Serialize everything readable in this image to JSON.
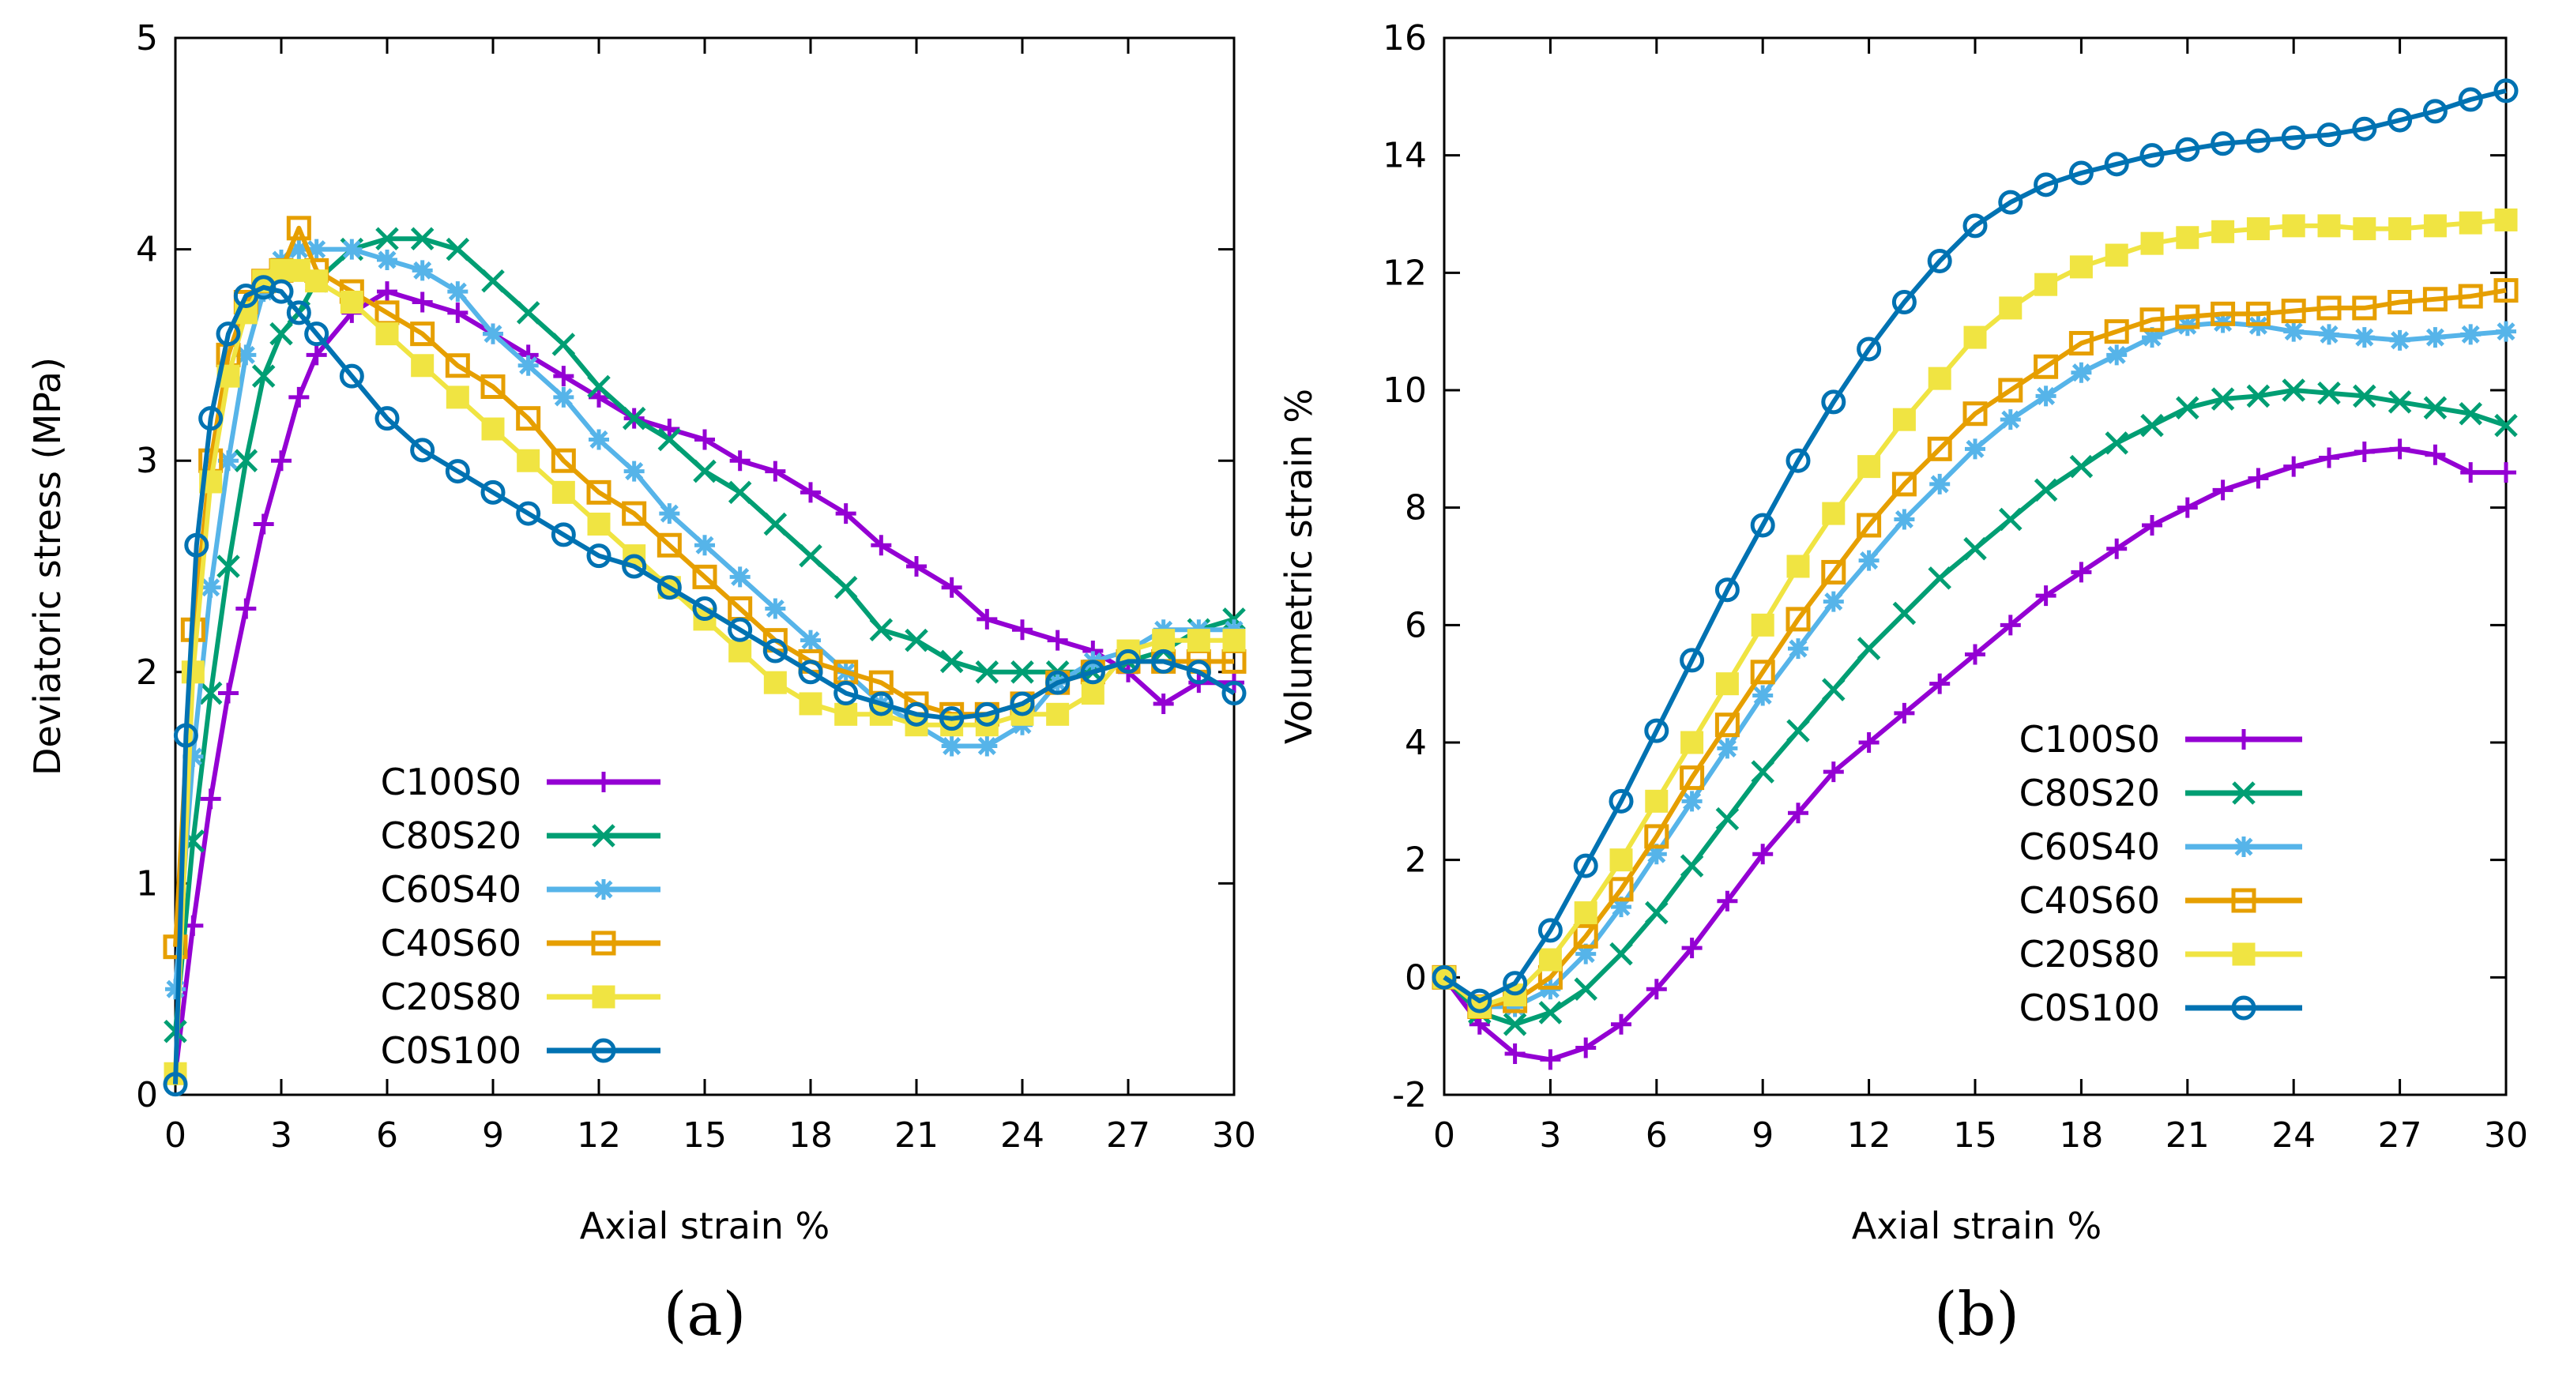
{
  "chart_data": [
    {
      "type": "line",
      "panel": "a",
      "caption": "(a)",
      "xlabel": "Axial strain %",
      "ylabel": "Deviatoric stress (MPa)",
      "xlim": [
        0,
        30
      ],
      "ylim": [
        0,
        5
      ],
      "xticks": [
        "0",
        "3",
        "6",
        "9",
        "12",
        "15",
        "18",
        "21",
        "24",
        "27",
        "30"
      ],
      "yticks": [
        "0",
        "1",
        "2",
        "3",
        "4",
        "5"
      ],
      "grid": false,
      "legend_position": "lower-left",
      "series": [
        {
          "name": "C100S0",
          "color": "#9400d3",
          "marker": "plus",
          "x": [
            0,
            0.5,
            1,
            1.5,
            2,
            2.5,
            3,
            3.5,
            4,
            5,
            6,
            7,
            8,
            9,
            10,
            11,
            12,
            13,
            14,
            15,
            16,
            17,
            18,
            19,
            20,
            21,
            22,
            23,
            24,
            25,
            26,
            27,
            28,
            29,
            30
          ],
          "y": [
            0.1,
            0.8,
            1.4,
            1.9,
            2.3,
            2.7,
            3.0,
            3.3,
            3.5,
            3.7,
            3.8,
            3.75,
            3.7,
            3.6,
            3.5,
            3.4,
            3.3,
            3.2,
            3.15,
            3.1,
            3.0,
            2.95,
            2.85,
            2.75,
            2.6,
            2.5,
            2.4,
            2.25,
            2.2,
            2.15,
            2.1,
            2.0,
            1.85,
            1.95,
            1.95
          ]
        },
        {
          "name": "C80S20",
          "color": "#009e73",
          "marker": "cross",
          "x": [
            0,
            0.5,
            1,
            1.5,
            2,
            2.5,
            3,
            3.5,
            4,
            5,
            6,
            7,
            8,
            9,
            10,
            11,
            12,
            13,
            14,
            15,
            16,
            17,
            18,
            19,
            20,
            21,
            22,
            23,
            24,
            25,
            26,
            27,
            28,
            29,
            30
          ],
          "y": [
            0.3,
            1.2,
            1.9,
            2.5,
            3.0,
            3.4,
            3.6,
            3.7,
            3.85,
            4.0,
            4.05,
            4.05,
            4.0,
            3.85,
            3.7,
            3.55,
            3.35,
            3.2,
            3.1,
            2.95,
            2.85,
            2.7,
            2.55,
            2.4,
            2.2,
            2.15,
            2.05,
            2.0,
            2.0,
            2.0,
            2.0,
            2.05,
            2.1,
            2.2,
            2.25
          ]
        },
        {
          "name": "C60S40",
          "color": "#56b4e9",
          "marker": "star",
          "x": [
            0,
            0.5,
            1,
            1.5,
            2,
            2.5,
            3,
            3.5,
            4,
            5,
            6,
            7,
            8,
            9,
            10,
            11,
            12,
            13,
            14,
            15,
            16,
            17,
            18,
            19,
            20,
            21,
            22,
            23,
            24,
            25,
            26,
            27,
            28,
            29,
            30
          ],
          "y": [
            0.5,
            1.6,
            2.4,
            3.0,
            3.5,
            3.8,
            3.95,
            4.0,
            4.0,
            4.0,
            3.95,
            3.9,
            3.8,
            3.6,
            3.45,
            3.3,
            3.1,
            2.95,
            2.75,
            2.6,
            2.45,
            2.3,
            2.15,
            2.0,
            1.85,
            1.75,
            1.65,
            1.65,
            1.75,
            1.95,
            2.05,
            2.1,
            2.2,
            2.2,
            2.2
          ]
        },
        {
          "name": "C40S60",
          "color": "#e69f00",
          "marker": "square",
          "x": [
            0,
            0.5,
            1,
            1.5,
            2,
            2.5,
            3,
            3.5,
            4,
            5,
            6,
            7,
            8,
            9,
            10,
            11,
            12,
            13,
            14,
            15,
            16,
            17,
            18,
            19,
            20,
            21,
            22,
            23,
            24,
            25,
            26,
            27,
            28,
            29,
            30
          ],
          "y": [
            0.7,
            2.2,
            3.0,
            3.5,
            3.75,
            3.85,
            3.9,
            4.1,
            3.9,
            3.8,
            3.7,
            3.6,
            3.45,
            3.35,
            3.2,
            3.0,
            2.85,
            2.75,
            2.6,
            2.45,
            2.3,
            2.15,
            2.05,
            2.0,
            1.95,
            1.85,
            1.8,
            1.8,
            1.85,
            1.95,
            2.0,
            2.05,
            2.05,
            2.05,
            2.05
          ]
        },
        {
          "name": "C20S80",
          "color": "#f0e442",
          "marker": "filled-square",
          "x": [
            0,
            0.5,
            1,
            1.5,
            2,
            2.5,
            3,
            3.5,
            4,
            5,
            6,
            7,
            8,
            9,
            10,
            11,
            12,
            13,
            14,
            15,
            16,
            17,
            18,
            19,
            20,
            21,
            22,
            23,
            24,
            25,
            26,
            27,
            28,
            29,
            30
          ],
          "y": [
            0.1,
            2.0,
            2.9,
            3.4,
            3.7,
            3.85,
            3.9,
            3.9,
            3.85,
            3.75,
            3.6,
            3.45,
            3.3,
            3.15,
            3.0,
            2.85,
            2.7,
            2.55,
            2.4,
            2.25,
            2.1,
            1.95,
            1.85,
            1.8,
            1.8,
            1.75,
            1.75,
            1.75,
            1.8,
            1.8,
            1.9,
            2.1,
            2.15,
            2.15,
            2.15
          ]
        },
        {
          "name": "C0S100",
          "color": "#0072b2",
          "marker": "circle",
          "x": [
            0,
            0.3,
            0.6,
            1,
            1.5,
            2,
            2.5,
            3,
            3.5,
            4,
            5,
            6,
            7,
            8,
            9,
            10,
            11,
            12,
            13,
            14,
            15,
            16,
            17,
            18,
            19,
            20,
            21,
            22,
            23,
            24,
            25,
            26,
            27,
            28,
            29,
            30
          ],
          "y": [
            0.05,
            1.7,
            2.6,
            3.2,
            3.6,
            3.78,
            3.82,
            3.8,
            3.7,
            3.6,
            3.4,
            3.2,
            3.05,
            2.95,
            2.85,
            2.75,
            2.65,
            2.55,
            2.5,
            2.4,
            2.3,
            2.2,
            2.1,
            2.0,
            1.9,
            1.85,
            1.8,
            1.78,
            1.8,
            1.85,
            1.95,
            2.0,
            2.05,
            2.05,
            2.0,
            1.9
          ]
        }
      ]
    },
    {
      "type": "line",
      "panel": "b",
      "caption": "(b)",
      "xlabel": "Axial strain %",
      "ylabel": "Volumetric strain %",
      "xlim": [
        0,
        30
      ],
      "ylim": [
        -2,
        16
      ],
      "xticks": [
        "0",
        "3",
        "6",
        "9",
        "12",
        "15",
        "18",
        "21",
        "24",
        "27",
        "30"
      ],
      "yticks": [
        "-2",
        "0",
        "2",
        "4",
        "6",
        "8",
        "10",
        "12",
        "14",
        "16"
      ],
      "grid": false,
      "legend_position": "lower-right",
      "series": [
        {
          "name": "C100S0",
          "color": "#9400d3",
          "marker": "plus",
          "x": [
            0,
            1,
            2,
            3,
            4,
            5,
            6,
            7,
            8,
            9,
            10,
            11,
            12,
            13,
            14,
            15,
            16,
            17,
            18,
            19,
            20,
            21,
            22,
            23,
            24,
            25,
            26,
            27,
            28,
            29,
            30
          ],
          "y": [
            0,
            -0.8,
            -1.3,
            -1.4,
            -1.2,
            -0.8,
            -0.2,
            0.5,
            1.3,
            2.1,
            2.8,
            3.5,
            4.0,
            4.5,
            5.0,
            5.5,
            6.0,
            6.5,
            6.9,
            7.3,
            7.7,
            8.0,
            8.3,
            8.5,
            8.7,
            8.85,
            8.95,
            9.0,
            8.9,
            8.6,
            8.6
          ]
        },
        {
          "name": "C80S20",
          "color": "#009e73",
          "marker": "cross",
          "x": [
            0,
            1,
            2,
            3,
            4,
            5,
            6,
            7,
            8,
            9,
            10,
            11,
            12,
            13,
            14,
            15,
            16,
            17,
            18,
            19,
            20,
            21,
            22,
            23,
            24,
            25,
            26,
            27,
            28,
            29,
            30
          ],
          "y": [
            0,
            -0.6,
            -0.8,
            -0.6,
            -0.2,
            0.4,
            1.1,
            1.9,
            2.7,
            3.5,
            4.2,
            4.9,
            5.6,
            6.2,
            6.8,
            7.3,
            7.8,
            8.3,
            8.7,
            9.1,
            9.4,
            9.7,
            9.85,
            9.9,
            10.0,
            9.95,
            9.9,
            9.8,
            9.7,
            9.6,
            9.4
          ]
        },
        {
          "name": "C60S40",
          "color": "#56b4e9",
          "marker": "star",
          "x": [
            0,
            1,
            2,
            3,
            4,
            5,
            6,
            7,
            8,
            9,
            10,
            11,
            12,
            13,
            14,
            15,
            16,
            17,
            18,
            19,
            20,
            21,
            22,
            23,
            24,
            25,
            26,
            27,
            28,
            29,
            30
          ],
          "y": [
            0,
            -0.5,
            -0.5,
            -0.2,
            0.4,
            1.2,
            2.1,
            3.0,
            3.9,
            4.8,
            5.6,
            6.4,
            7.1,
            7.8,
            8.4,
            9.0,
            9.5,
            9.9,
            10.3,
            10.6,
            10.9,
            11.1,
            11.15,
            11.1,
            11.0,
            10.95,
            10.9,
            10.85,
            10.9,
            10.95,
            11.0
          ]
        },
        {
          "name": "C40S60",
          "color": "#e69f00",
          "marker": "square",
          "x": [
            0,
            1,
            2,
            3,
            4,
            5,
            6,
            7,
            8,
            9,
            10,
            11,
            12,
            13,
            14,
            15,
            16,
            17,
            18,
            19,
            20,
            21,
            22,
            23,
            24,
            25,
            26,
            27,
            28,
            29,
            30
          ],
          "y": [
            0,
            -0.5,
            -0.4,
            0.0,
            0.7,
            1.5,
            2.4,
            3.4,
            4.3,
            5.2,
            6.1,
            6.9,
            7.7,
            8.4,
            9.0,
            9.6,
            10.0,
            10.4,
            10.8,
            11.0,
            11.2,
            11.25,
            11.3,
            11.3,
            11.35,
            11.4,
            11.4,
            11.5,
            11.55,
            11.6,
            11.7
          ]
        },
        {
          "name": "C20S80",
          "color": "#f0e442",
          "marker": "filled-square",
          "x": [
            0,
            1,
            2,
            3,
            4,
            5,
            6,
            7,
            8,
            9,
            10,
            11,
            12,
            13,
            14,
            15,
            16,
            17,
            18,
            19,
            20,
            21,
            22,
            23,
            24,
            25,
            26,
            27,
            28,
            29,
            30
          ],
          "y": [
            0,
            -0.5,
            -0.3,
            0.3,
            1.1,
            2.0,
            3.0,
            4.0,
            5.0,
            6.0,
            7.0,
            7.9,
            8.7,
            9.5,
            10.2,
            10.9,
            11.4,
            11.8,
            12.1,
            12.3,
            12.5,
            12.6,
            12.7,
            12.75,
            12.8,
            12.8,
            12.75,
            12.75,
            12.8,
            12.85,
            12.9
          ]
        },
        {
          "name": "C0S100",
          "color": "#0072b2",
          "marker": "circle",
          "x": [
            0,
            1,
            2,
            3,
            4,
            5,
            6,
            7,
            8,
            9,
            10,
            11,
            12,
            13,
            14,
            15,
            16,
            17,
            18,
            19,
            20,
            21,
            22,
            23,
            24,
            25,
            26,
            27,
            28,
            29,
            30
          ],
          "y": [
            0,
            -0.4,
            -0.1,
            0.8,
            1.9,
            3.0,
            4.2,
            5.4,
            6.6,
            7.7,
            8.8,
            9.8,
            10.7,
            11.5,
            12.2,
            12.8,
            13.2,
            13.5,
            13.7,
            13.85,
            14.0,
            14.1,
            14.2,
            14.25,
            14.3,
            14.35,
            14.45,
            14.6,
            14.75,
            14.95,
            15.1
          ]
        }
      ]
    }
  ]
}
